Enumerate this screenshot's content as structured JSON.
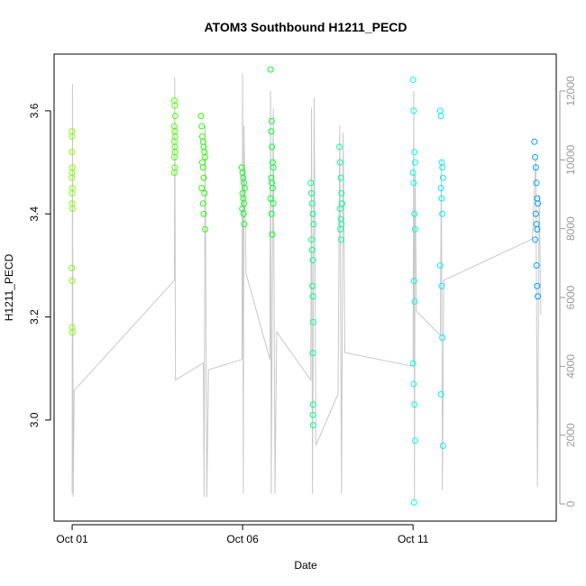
{
  "chart_data": {
    "type": "scatter",
    "title": "ATOM3 Southbound H1211_PECD",
    "xlabel": "Date",
    "ylabel": "H1211_PECD",
    "xlim": [
      0.47,
      15.2
    ],
    "ylim": [
      2.804,
      3.71
    ],
    "y2lim": [
      -498,
      13074
    ],
    "xticks": [
      {
        "value": 1,
        "label": "Oct 01"
      },
      {
        "value": 6,
        "label": "Oct 06"
      },
      {
        "value": 11,
        "label": "Oct 11"
      }
    ],
    "yticks": [
      {
        "value": 3,
        "label": "3.0"
      },
      3.2,
      3.4,
      3.6
    ],
    "y2ticks": [
      0,
      2000,
      4000,
      6000,
      8000,
      10000,
      12000
    ],
    "series": [
      {
        "type": "line",
        "axis": "y2",
        "color": "#c8c8c8",
        "x": [
          1.0,
          1.01,
          1.03,
          1.06,
          4.0,
          4.01,
          4.03,
          4.85,
          4.87,
          4.9,
          4.95,
          5.0,
          5.98,
          6.0,
          6.02,
          6.04,
          6.1,
          6.8,
          6.82,
          6.84,
          6.9,
          6.95,
          7.0,
          8.0,
          8.02,
          8.05,
          8.1,
          8.15,
          8.8,
          8.85,
          8.9,
          8.95,
          9.0,
          11.0,
          11.02,
          11.04,
          11.06,
          11.1,
          11.8,
          11.83,
          11.86,
          11.9,
          14.5,
          14.6,
          14.65,
          14.7,
          14.75
        ],
        "values": [
          300,
          12200,
          200,
          3300,
          6500,
          12400,
          3600,
          4100,
          200,
          11000,
          200,
          3900,
          4200,
          12500,
          300,
          11000,
          6700,
          4200,
          12000,
          300,
          11500,
          300,
          5000,
          3600,
          11500,
          300,
          11800,
          1700,
          3200,
          11000,
          300,
          10800,
          4400,
          4000,
          12000,
          100,
          9600,
          5600,
          4900,
          10000,
          400,
          6500,
          7700,
          10000,
          500,
          9000,
          5500
        ]
      },
      {
        "type": "scatter",
        "color": "#80ff00",
        "x": [
          0.99,
          1.0,
          1.0,
          1.01,
          1.0,
          0.99,
          1.01,
          1.0,
          1.0,
          1.01,
          0.99,
          1.0,
          1.0,
          1.01
        ],
        "values": [
          3.56,
          3.55,
          3.52,
          3.49,
          3.48,
          3.47,
          3.45,
          3.44,
          3.42,
          3.41,
          3.295,
          3.27,
          3.18,
          3.17
        ]
      },
      {
        "type": "scatter",
        "color": "#4dff00",
        "x": [
          4.0,
          4.01,
          4.02,
          4.0,
          4.01,
          4.02,
          4.0,
          4.01,
          4.02,
          4.0,
          4.01,
          4.0
        ],
        "values": [
          3.62,
          3.61,
          3.59,
          3.57,
          3.56,
          3.55,
          3.54,
          3.53,
          3.52,
          3.51,
          3.49,
          3.48
        ]
      },
      {
        "type": "scatter",
        "color": "#26ff00",
        "x": [
          4.78,
          4.8,
          4.82,
          4.84,
          4.86,
          4.88,
          4.9,
          4.82,
          4.84,
          4.86,
          4.8,
          4.88,
          4.84,
          4.86,
          4.9
        ],
        "values": [
          3.59,
          3.57,
          3.55,
          3.54,
          3.53,
          3.52,
          3.51,
          3.5,
          3.49,
          3.47,
          3.45,
          3.44,
          3.42,
          3.4,
          3.37
        ]
      },
      {
        "type": "scatter",
        "color": "#0dff1a",
        "x": [
          5.98,
          6.0,
          6.02,
          6.04,
          6.06,
          6.0,
          6.02,
          6.04,
          5.99,
          6.03,
          6.05
        ],
        "values": [
          3.49,
          3.48,
          3.47,
          3.46,
          3.45,
          3.44,
          3.43,
          3.42,
          3.41,
          3.4,
          3.38
        ]
      },
      {
        "type": "scatter",
        "color": "#00ff33",
        "x": [
          6.82,
          6.85,
          6.84,
          6.86,
          6.88,
          6.9,
          6.84,
          6.86,
          6.88,
          6.82,
          6.9,
          6.85,
          6.87
        ],
        "values": [
          3.68,
          3.58,
          3.56,
          3.53,
          3.5,
          3.49,
          3.47,
          3.46,
          3.45,
          3.43,
          3.42,
          3.4,
          3.36
        ]
      },
      {
        "type": "scatter",
        "color": "#00ff88",
        "x": [
          8.0,
          8.02,
          8.04,
          8.06,
          8.08,
          8.02,
          8.04,
          8.06,
          8.05,
          8.06,
          8.07,
          8.06,
          8.07,
          8.06,
          8.07
        ],
        "values": [
          3.46,
          3.44,
          3.42,
          3.4,
          3.38,
          3.35,
          3.33,
          3.31,
          3.26,
          3.24,
          3.19,
          3.13,
          3.03,
          3.01,
          2.99
        ]
      },
      {
        "type": "scatter",
        "color": "#00ff99",
        "x": [
          8.84,
          8.86,
          8.88,
          8.9,
          8.92,
          8.86,
          8.88,
          8.9,
          8.87,
          8.89
        ],
        "values": [
          3.53,
          3.5,
          3.47,
          3.44,
          3.42,
          3.41,
          3.39,
          3.38,
          3.37,
          3.35
        ]
      },
      {
        "type": "scatter",
        "color": "#00ffdd",
        "x": [
          11.0,
          11.02,
          11.04,
          11.06,
          11.0,
          11.02,
          11.04,
          11.06,
          11.03,
          11.05,
          11.0,
          11.02,
          11.04,
          11.06,
          11.03
        ],
        "values": [
          3.66,
          3.6,
          3.52,
          3.5,
          3.48,
          3.46,
          3.4,
          3.37,
          3.27,
          3.23,
          3.11,
          3.07,
          3.03,
          2.96,
          2.84
        ]
      },
      {
        "type": "scatter",
        "color": "#00eeff",
        "x": [
          11.8,
          11.82,
          11.84,
          11.86,
          11.88,
          11.82,
          11.84,
          11.86,
          11.8,
          11.84,
          11.86,
          11.82,
          11.88
        ],
        "values": [
          3.6,
          3.59,
          3.5,
          3.49,
          3.47,
          3.45,
          3.43,
          3.4,
          3.3,
          3.26,
          3.16,
          3.05,
          2.95
        ]
      },
      {
        "type": "scatter",
        "color": "#00a0ff",
        "x": [
          14.56,
          14.58,
          14.6,
          14.62,
          14.64,
          14.66,
          14.6,
          14.62,
          14.64,
          14.58,
          14.62,
          14.64,
          14.66
        ],
        "values": [
          3.54,
          3.51,
          3.49,
          3.46,
          3.43,
          3.42,
          3.4,
          3.38,
          3.37,
          3.35,
          3.3,
          3.26,
          3.24
        ]
      }
    ]
  }
}
